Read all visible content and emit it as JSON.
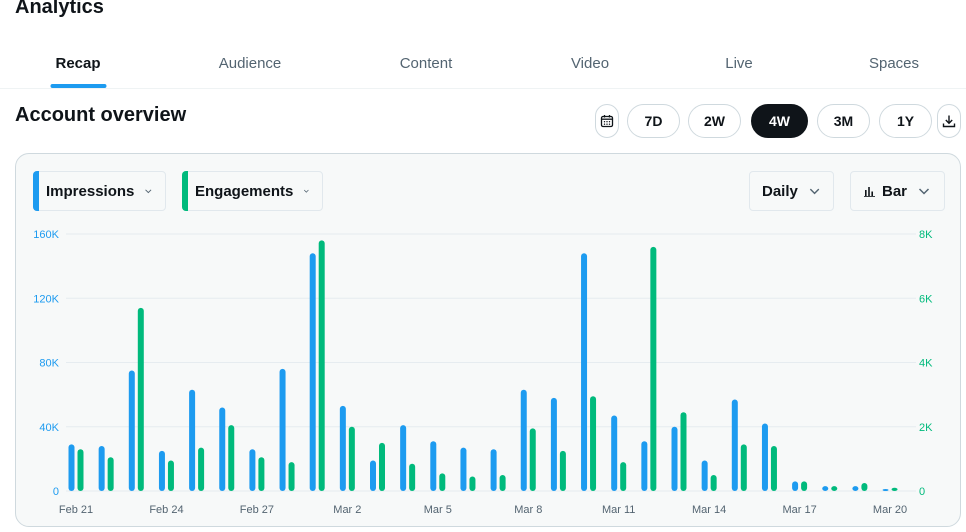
{
  "page": {
    "title": "Analytics"
  },
  "tabs": [
    {
      "label": "Recap",
      "active": true
    },
    {
      "label": "Audience",
      "active": false
    },
    {
      "label": "Content",
      "active": false
    },
    {
      "label": "Video",
      "active": false
    },
    {
      "label": "Live",
      "active": false
    },
    {
      "label": "Spaces",
      "active": false
    }
  ],
  "overview": {
    "title": "Account overview",
    "ranges": [
      "7D",
      "2W",
      "4W",
      "3M",
      "1Y"
    ],
    "active_range": "4W"
  },
  "controls": {
    "metric1": "Impressions",
    "metric2": "Engagements",
    "granularity": "Daily",
    "chart_type": "Bar"
  },
  "colors": {
    "impressions": "#1d9bf0",
    "engagements": "#00ba7c",
    "grid": "#e6ecf0",
    "text_muted": "#536471"
  },
  "chart_data": {
    "type": "bar",
    "title": "Account overview",
    "x": [
      "Feb 21",
      "Feb 22",
      "Feb 23",
      "Feb 24",
      "Feb 25",
      "Feb 26",
      "Feb 27",
      "Feb 28",
      "Mar 1",
      "Mar 2",
      "Mar 3",
      "Mar 4",
      "Mar 5",
      "Mar 6",
      "Mar 7",
      "Mar 8",
      "Mar 9",
      "Mar 10",
      "Mar 11",
      "Mar 12",
      "Mar 13",
      "Mar 14",
      "Mar 15",
      "Mar 16",
      "Mar 17",
      "Mar 18",
      "Mar 19",
      "Mar 20"
    ],
    "x_tick_labels": [
      "Feb 21",
      "Feb 24",
      "Feb 27",
      "Mar 2",
      "Mar 5",
      "Mar 8",
      "Mar 11",
      "Mar 14",
      "Mar 17",
      "Mar 20"
    ],
    "x_tick_indices": [
      0,
      3,
      6,
      9,
      12,
      15,
      18,
      21,
      24,
      27
    ],
    "series": [
      {
        "name": "Impressions",
        "axis": "left",
        "values": [
          29000,
          28000,
          75000,
          25000,
          63000,
          52000,
          26000,
          76000,
          148000,
          53000,
          19000,
          41000,
          31000,
          27000,
          26000,
          63000,
          58000,
          148000,
          47000,
          31000,
          40000,
          19000,
          57000,
          42000,
          6000,
          3000,
          3000,
          1000
        ]
      },
      {
        "name": "Engagements",
        "axis": "right",
        "values": [
          1300,
          1050,
          5700,
          950,
          1350,
          2050,
          1050,
          900,
          7800,
          2000,
          1500,
          850,
          550,
          450,
          500,
          1950,
          1250,
          2950,
          900,
          7600,
          2450,
          500,
          1450,
          1400,
          300,
          150,
          250,
          100
        ]
      }
    ],
    "y_left": {
      "label": "Impressions",
      "lim": [
        0,
        160000
      ],
      "ticks": [
        0,
        40000,
        80000,
        120000,
        160000
      ],
      "tick_labels": [
        "0",
        "40K",
        "80K",
        "120K",
        "160K"
      ]
    },
    "y_right": {
      "label": "Engagements",
      "lim": [
        0,
        8000
      ],
      "ticks": [
        0,
        2000,
        4000,
        6000,
        8000
      ],
      "tick_labels": [
        "0",
        "2K",
        "4K",
        "6K",
        "8K"
      ]
    },
    "grid": true
  }
}
